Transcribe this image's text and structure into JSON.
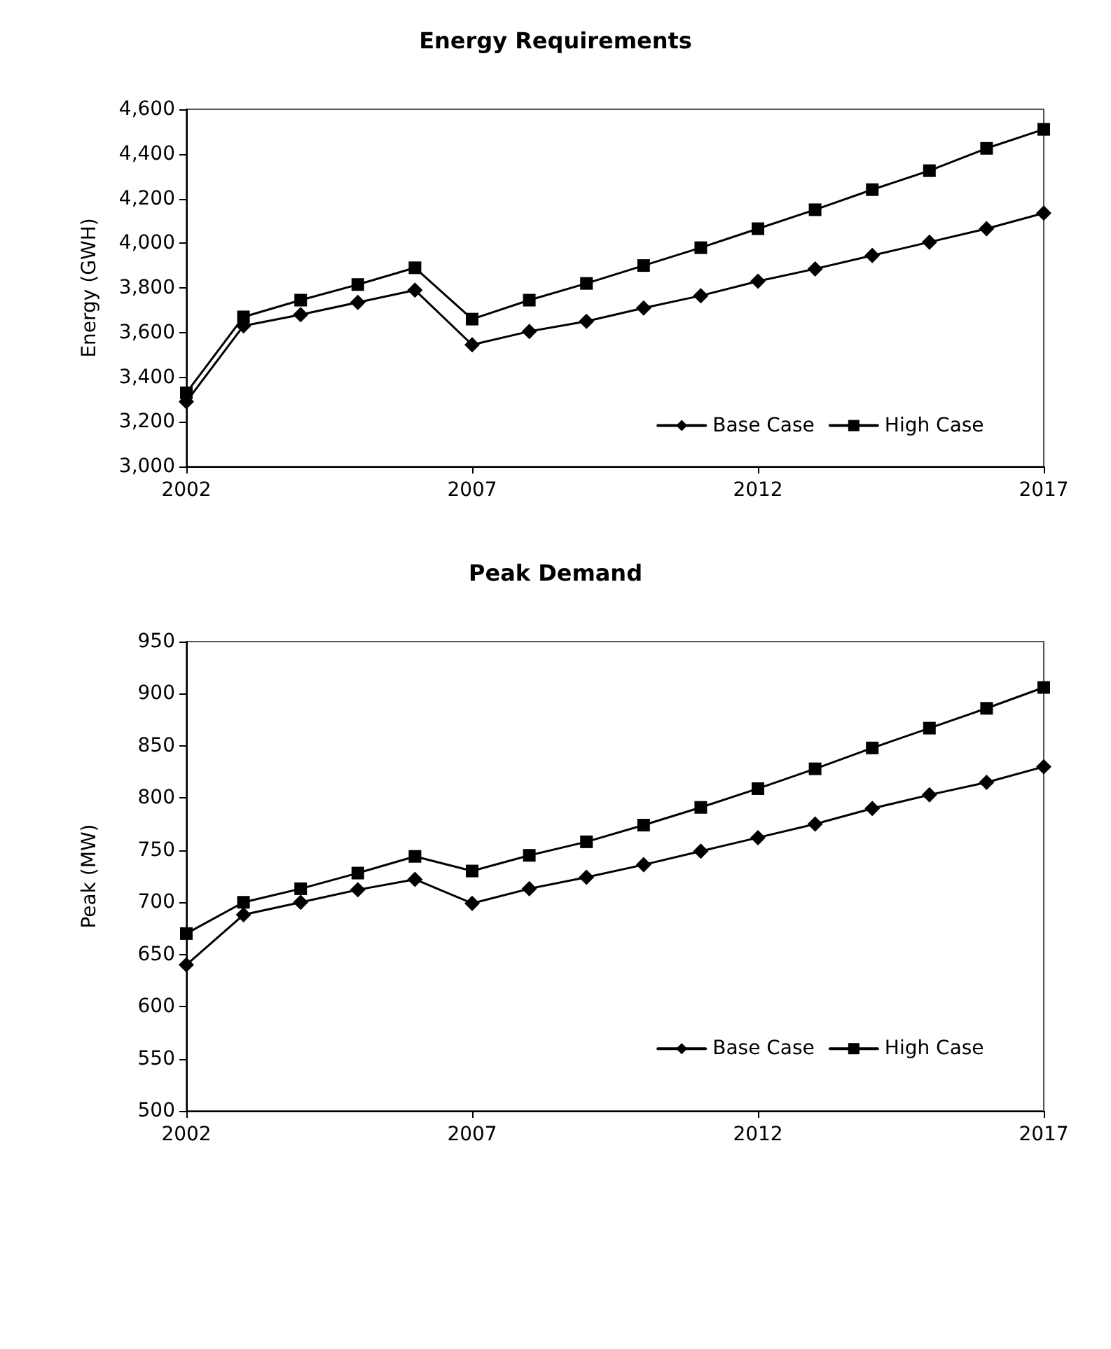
{
  "chart_data": [
    {
      "type": "line",
      "title": "Energy Requirements",
      "ylabel": "Energy (GWH)",
      "x": [
        2002,
        2003,
        2004,
        2005,
        2006,
        2007,
        2008,
        2009,
        2010,
        2011,
        2012,
        2013,
        2014,
        2015,
        2016,
        2017
      ],
      "xlim": [
        2002,
        2017
      ],
      "xticks": [
        2002,
        2007,
        2012,
        2017
      ],
      "ylim": [
        3000,
        4600
      ],
      "yticks": [
        {
          "value": 3000,
          "label": "3,000"
        },
        {
          "value": 3200,
          "label": "3,200"
        },
        {
          "value": 3400,
          "label": "3,400"
        },
        {
          "value": 3600,
          "label": "3,600"
        },
        {
          "value": 3800,
          "label": "3,800"
        },
        {
          "value": 4000,
          "label": "4,000"
        },
        {
          "value": 4200,
          "label": "4,200"
        },
        {
          "value": 4400,
          "label": "4,400"
        },
        {
          "value": 4600,
          "label": "4,600"
        }
      ],
      "grid": false,
      "legend": "bottom right",
      "line_style": "solid",
      "series": [
        {
          "name": "Base Case",
          "color": "#000000",
          "marker": "diamond",
          "values": [
            3290,
            3630,
            3680,
            3735,
            3790,
            3545,
            3605,
            3650,
            3710,
            3765,
            3830,
            3885,
            3945,
            4005,
            4065,
            4135
          ]
        },
        {
          "name": "High Case",
          "color": "#000000",
          "marker": "square",
          "values": [
            3330,
            3670,
            3745,
            3815,
            3890,
            3660,
            3745,
            3820,
            3900,
            3980,
            4065,
            4150,
            4240,
            4325,
            4425,
            4510
          ]
        }
      ]
    },
    {
      "type": "line",
      "title": "Peak Demand",
      "ylabel": "Peak (MW)",
      "x": [
        2002,
        2003,
        2004,
        2005,
        2006,
        2007,
        2008,
        2009,
        2010,
        2011,
        2012,
        2013,
        2014,
        2015,
        2016,
        2017
      ],
      "xlim": [
        2002,
        2017
      ],
      "xticks": [
        2002,
        2007,
        2012,
        2017
      ],
      "ylim": [
        500,
        950
      ],
      "yticks": [
        500,
        550,
        600,
        650,
        700,
        750,
        800,
        850,
        900,
        950
      ],
      "grid": false,
      "legend": "bottom right",
      "line_style": "solid",
      "series": [
        {
          "name": "Base Case",
          "color": "#000000",
          "marker": "diamond",
          "values": [
            640,
            688,
            700,
            712,
            722,
            699,
            713,
            724,
            736,
            749,
            762,
            775,
            790,
            803,
            815,
            830
          ]
        },
        {
          "name": "High Case",
          "color": "#000000",
          "marker": "square",
          "values": [
            670,
            700,
            713,
            728,
            744,
            730,
            745,
            758,
            774,
            791,
            809,
            828,
            848,
            867,
            886,
            906
          ]
        }
      ]
    }
  ]
}
